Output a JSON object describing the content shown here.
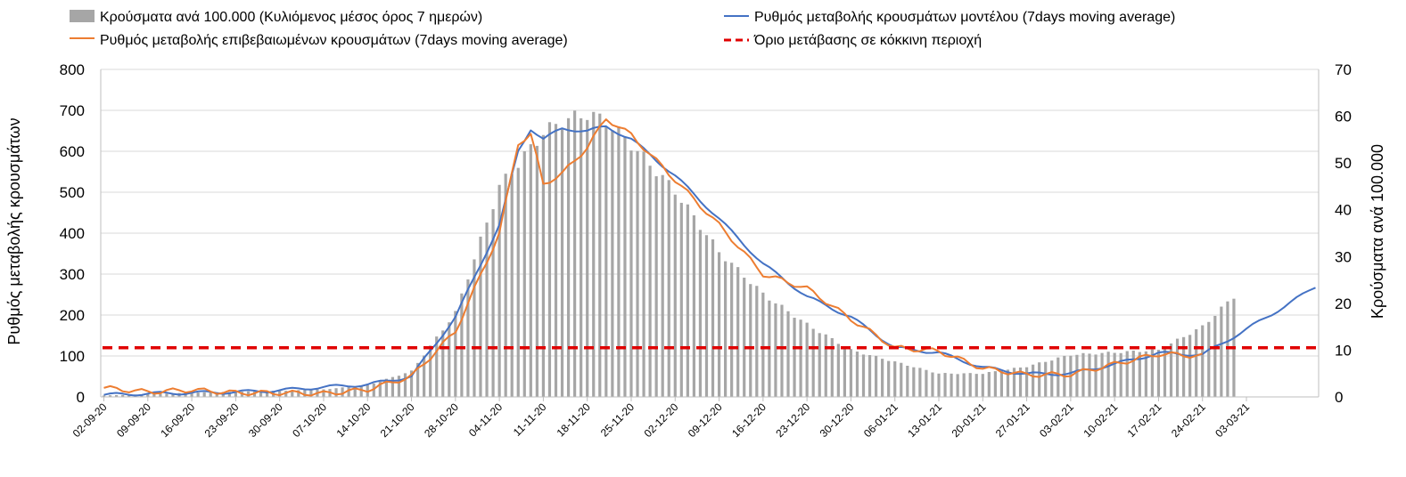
{
  "chart_data": {
    "type": "bar+line",
    "title": "",
    "ylabel_left": "Ρυθμός μεταβολής κρουσμάτων",
    "ylabel_right": "Κρούσματα ανά 100.000",
    "ylim_left": [
      0,
      800
    ],
    "ylim_right": [
      0,
      70
    ],
    "yticks_left": [
      "0",
      "100",
      "200",
      "300",
      "400",
      "500",
      "600",
      "700",
      "800"
    ],
    "yticks_right": [
      "0",
      "10",
      "20",
      "30",
      "40",
      "50",
      "60",
      "70"
    ],
    "x_labels": [
      "02-09-20",
      "09-09-20",
      "16-09-20",
      "23-09-20",
      "30-09-20",
      "07-10-20",
      "14-10-20",
      "21-10-20",
      "28-10-20",
      "04-11-20",
      "11-11-20",
      "18-11-20",
      "25-11-20",
      "02-12-20",
      "09-12-20",
      "16-12-20",
      "23-12-20",
      "30-12-20",
      "06-01-21",
      "13-01-21",
      "20-01-21",
      "27-01-21",
      "03-02-21",
      "10-02-21",
      "17-02-21",
      "24-02-21",
      "03-03-21"
    ],
    "legend": {
      "bars": "Κρούσματα ανά 100.000 (Κυλιόμενος μέσος όρος 7 ημερών)",
      "model": "Ρυθμός μεταβολής κρουσμάτων μοντέλου (7days moving average)",
      "confirmed": "Ρυθμός μεταβολής επιβεβαιωμένων κρουσμάτων (7days moving average)",
      "threshold": "Όριο μετάβασης σε κόκκινη περιοχή"
    },
    "colors": {
      "bars": "#a6a6a6",
      "model": "#4472c4",
      "confirmed": "#ed7d31",
      "threshold": "#e00000"
    },
    "threshold_value": 120,
    "bars_keypoints": [
      [
        0,
        0.3
      ],
      [
        7,
        0.6
      ],
      [
        14,
        0.9
      ],
      [
        21,
        1.1
      ],
      [
        28,
        1.3
      ],
      [
        35,
        1.6
      ],
      [
        42,
        2.5
      ],
      [
        49,
        5.5
      ],
      [
        56,
        18
      ],
      [
        63,
        45
      ],
      [
        70,
        56.5
      ],
      [
        73,
        59
      ],
      [
        77,
        60.5
      ],
      [
        80,
        59
      ],
      [
        84,
        54
      ],
      [
        91,
        44
      ],
      [
        98,
        31
      ],
      [
        105,
        22
      ],
      [
        112,
        15.5
      ],
      [
        119,
        10
      ],
      [
        126,
        7.5
      ],
      [
        133,
        5
      ],
      [
        140,
        5
      ],
      [
        147,
        6.5
      ],
      [
        154,
        9
      ],
      [
        161,
        9.5
      ],
      [
        168,
        10
      ],
      [
        175,
        15
      ],
      [
        180,
        21.5
      ]
    ],
    "model_keypoints": [
      [
        0,
        5
      ],
      [
        7,
        8
      ],
      [
        14,
        10
      ],
      [
        21,
        12
      ],
      [
        28,
        16
      ],
      [
        35,
        24
      ],
      [
        42,
        30
      ],
      [
        49,
        50
      ],
      [
        56,
        195
      ],
      [
        63,
        420
      ],
      [
        66,
        600
      ],
      [
        68,
        655
      ],
      [
        70,
        630
      ],
      [
        73,
        655
      ],
      [
        77,
        650
      ],
      [
        80,
        660
      ],
      [
        84,
        630
      ],
      [
        91,
        540
      ],
      [
        98,
        435
      ],
      [
        105,
        325
      ],
      [
        112,
        245
      ],
      [
        119,
        195
      ],
      [
        126,
        120
      ],
      [
        133,
        108
      ],
      [
        140,
        72
      ],
      [
        147,
        56
      ],
      [
        154,
        57
      ],
      [
        161,
        80
      ],
      [
        168,
        107
      ],
      [
        175,
        103
      ],
      [
        182,
        165
      ],
      [
        189,
        230
      ],
      [
        193,
        270
      ]
    ],
    "confirmed_keypoints": [
      [
        0,
        22
      ],
      [
        7,
        12
      ],
      [
        14,
        17
      ],
      [
        21,
        10
      ],
      [
        28,
        10
      ],
      [
        35,
        8
      ],
      [
        42,
        18
      ],
      [
        49,
        50
      ],
      [
        56,
        160
      ],
      [
        63,
        400
      ],
      [
        66,
        620
      ],
      [
        68,
        640
      ],
      [
        70,
        520
      ],
      [
        73,
        545
      ],
      [
        77,
        610
      ],
      [
        80,
        680
      ],
      [
        84,
        640
      ],
      [
        91,
        530
      ],
      [
        98,
        420
      ],
      [
        105,
        300
      ],
      [
        112,
        265
      ],
      [
        119,
        190
      ],
      [
        126,
        120
      ],
      [
        133,
        112
      ],
      [
        140,
        70
      ],
      [
        147,
        54
      ],
      [
        154,
        55
      ],
      [
        161,
        80
      ],
      [
        168,
        105
      ],
      [
        175,
        100
      ]
    ]
  }
}
